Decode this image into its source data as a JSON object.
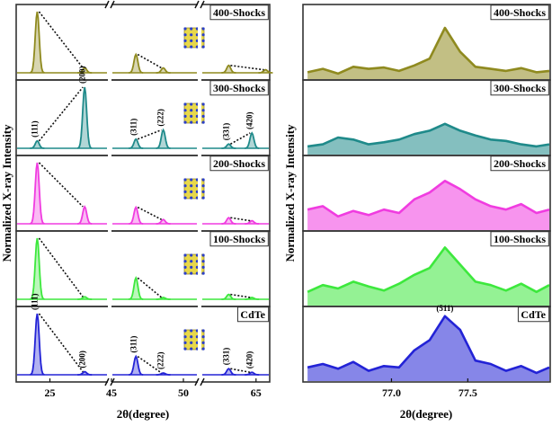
{
  "chart_data": [
    {
      "type": "line",
      "xlabel": "2θ(degree)",
      "ylabel": "Normalized X-ray Intensity",
      "xlim": [
        [
          21.8,
          30.5
        ],
        [
          45,
          51
        ],
        [
          61,
          66
        ]
      ],
      "xticks": [
        25,
        45,
        50,
        65
      ],
      "series": [
        {
          "name": "400-Shocks",
          "color": "#8f8a1f",
          "x": [
            23.8,
            28.3,
            46.7,
            48.6,
            63.0,
            65.7
          ],
          "values": [
            1.0,
            0.08,
            0.3,
            0.08,
            0.12,
            0.05
          ]
        },
        {
          "name": "300-Shocks",
          "color": "#1f8a8a",
          "x": [
            23.8,
            28.3,
            46.7,
            48.6,
            63.0,
            64.7
          ],
          "values": [
            0.12,
            1.0,
            0.15,
            0.3,
            0.07,
            0.25
          ],
          "peak_labels": [
            "(111)",
            "(200)",
            "(311)",
            "(222)",
            "(331)",
            "(420)"
          ]
        },
        {
          "name": "200-Shocks",
          "color": "#f03ce0",
          "x": [
            23.8,
            28.3,
            46.7,
            48.6,
            63.0,
            64.7
          ],
          "values": [
            1.0,
            0.28,
            0.27,
            0.07,
            0.1,
            0.05
          ]
        },
        {
          "name": "100-Shocks",
          "color": "#3de83d",
          "x": [
            23.8,
            28.3,
            46.7,
            48.6,
            63.0,
            64.7
          ],
          "values": [
            1.0,
            0.04,
            0.35,
            0.03,
            0.08,
            0.03
          ]
        },
        {
          "name": "CdTe",
          "color": "#2323d6",
          "x": [
            23.8,
            28.3,
            46.7,
            48.6,
            63.0,
            64.7
          ],
          "values": [
            1.0,
            0.05,
            0.3,
            0.03,
            0.1,
            0.04
          ],
          "peak_labels": [
            "(111)",
            "(200)",
            "(311)",
            "(222)",
            "(331)",
            "(420)"
          ]
        }
      ]
    },
    {
      "type": "area",
      "xlabel": "2θ(degree)",
      "ylabel": "Normalized X-ray Intensity",
      "xlim": [
        76.42,
        78.04
      ],
      "xticks": [
        {
          "value": 77,
          "label": "77.0"
        },
        77.5
      ],
      "x": [
        76.45,
        76.55,
        76.65,
        76.75,
        76.85,
        76.95,
        77.05,
        77.15,
        77.25,
        77.35,
        77.45,
        77.55,
        77.65,
        77.75,
        77.85,
        77.95,
        78.05
      ],
      "series": [
        {
          "name": "400-Shocks",
          "color": "#8f8a1f",
          "values": [
            0.1,
            0.15,
            0.08,
            0.18,
            0.15,
            0.17,
            0.12,
            0.2,
            0.3,
            0.75,
            0.4,
            0.18,
            0.15,
            0.12,
            0.16,
            0.1,
            0.12
          ]
        },
        {
          "name": "300-Shocks",
          "color": "#1f8a8a",
          "values": [
            0.12,
            0.15,
            0.25,
            0.22,
            0.15,
            0.18,
            0.22,
            0.3,
            0.35,
            0.45,
            0.35,
            0.28,
            0.22,
            0.2,
            0.15,
            0.12,
            0.15
          ]
        },
        {
          "name": "200-Shocks",
          "color": "#f03ce0",
          "values": [
            0.3,
            0.35,
            0.2,
            0.28,
            0.22,
            0.3,
            0.25,
            0.45,
            0.55,
            0.72,
            0.6,
            0.45,
            0.35,
            0.3,
            0.38,
            0.25,
            0.3
          ]
        },
        {
          "name": "100-Shocks",
          "color": "#3de83d",
          "values": [
            0.2,
            0.3,
            0.25,
            0.35,
            0.28,
            0.22,
            0.32,
            0.45,
            0.55,
            0.85,
            0.6,
            0.35,
            0.3,
            0.22,
            0.32,
            0.2,
            0.3
          ]
        },
        {
          "name": "CdTe",
          "color": "#2323d6",
          "values": [
            0.2,
            0.25,
            0.18,
            0.28,
            0.15,
            0.22,
            0.2,
            0.45,
            0.6,
            0.95,
            0.75,
            0.3,
            0.25,
            0.15,
            0.22,
            0.12,
            0.2
          ],
          "peak_labels": [
            null,
            null,
            null,
            null,
            null,
            null,
            null,
            null,
            null,
            "(511)",
            null,
            null,
            null,
            null,
            null,
            null,
            null
          ]
        }
      ]
    }
  ]
}
